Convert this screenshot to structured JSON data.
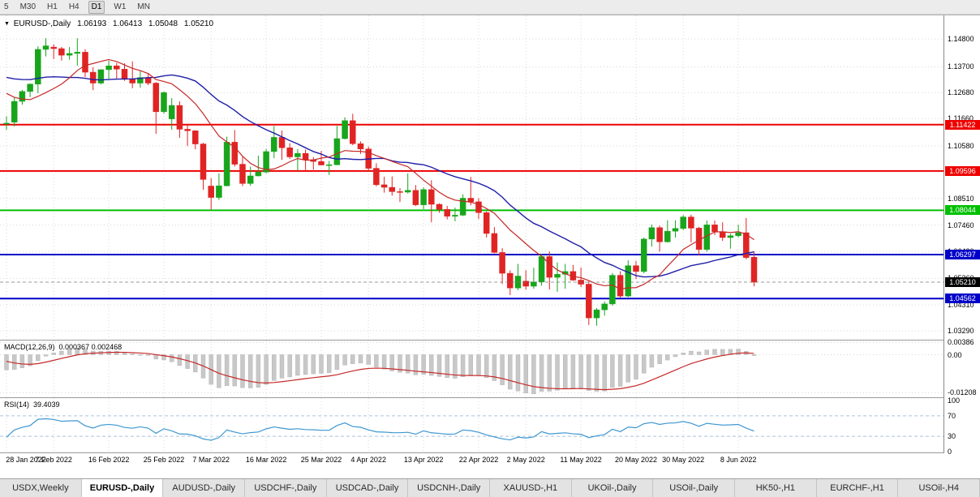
{
  "toolbar": {
    "timeframes": [
      "5",
      "M30",
      "H1",
      "H4",
      "D1",
      "W1",
      "MN"
    ],
    "active": "D1"
  },
  "colors": {
    "up": "#18a51c",
    "down": "#e02424",
    "ma_fast": "#c62828",
    "ma_slow": "#1f1fa8",
    "grid": "#d8d8d8",
    "macd_hist": "#c8c8c8",
    "macd_signal": "#c62828",
    "rsi_line": "#3e97d1",
    "rsi_level": "#a8c4e0"
  },
  "chart": {
    "title": "EURUSD-,Daily",
    "ohlc": {
      "open": "1.06193",
      "high": "1.06413",
      "low": "1.05048",
      "close": "1.05210"
    },
    "scale": {
      "top": 1.1573,
      "bottom": 1.0294
    },
    "axis_labels": [
      {
        "text": "1.14800",
        "price": 1.148
      },
      {
        "text": "1.13700",
        "price": 1.137
      },
      {
        "text": "1.12680",
        "price": 1.1268
      },
      {
        "text": "1.11660",
        "price": 1.1166
      },
      {
        "text": "1.10580",
        "price": 1.1058
      },
      {
        "text": "1.09560",
        "price": 1.0956
      },
      {
        "text": "1.08510",
        "price": 1.0851
      },
      {
        "text": "1.07460",
        "price": 1.0746
      },
      {
        "text": "1.06430",
        "price": 1.0643
      },
      {
        "text": "1.05360",
        "price": 1.0536
      },
      {
        "text": "1.04310",
        "price": 1.0431
      },
      {
        "text": "1.03290",
        "price": 1.0329
      }
    ],
    "hlines": [
      {
        "price": 1.11422,
        "text": "1.11422",
        "color": "#ee0000"
      },
      {
        "price": 1.09596,
        "text": "1.09596",
        "color": "#ee0000"
      },
      {
        "price": 1.08044,
        "text": "1.08044",
        "color": "#00c000"
      },
      {
        "price": 1.06297,
        "text": "1.06297",
        "color": "#0000c8"
      },
      {
        "price": 1.04562,
        "text": "1.04562",
        "color": "#0000c8"
      }
    ],
    "current_price": {
      "price": 1.0521,
      "text": "1.05210",
      "color": "#000000"
    },
    "dates": [
      {
        "label": "28 Jan 2022",
        "i": 0
      },
      {
        "label": "7 Feb 2022",
        "i": 6
      },
      {
        "label": "16 Feb 2022",
        "i": 13
      },
      {
        "label": "25 Feb 2022",
        "i": 20
      },
      {
        "label": "7 Mar 2022",
        "i": 26
      },
      {
        "label": "16 Mar 2022",
        "i": 33
      },
      {
        "label": "25 Mar 2022",
        "i": 40
      },
      {
        "label": "4 Apr 2022",
        "i": 46
      },
      {
        "label": "13 Apr 2022",
        "i": 53
      },
      {
        "label": "22 Apr 2022",
        "i": 60
      },
      {
        "label": "2 May 2022",
        "i": 66
      },
      {
        "label": "11 May 2022",
        "i": 73
      },
      {
        "label": "20 May 2022",
        "i": 80
      },
      {
        "label": "30 May 2022",
        "i": 86
      },
      {
        "label": "8 Jun 2022",
        "i": 93
      }
    ],
    "seed_closes": [
      1.1355,
      1.133,
      1.131,
      1.1325,
      1.136,
      1.1413,
      1.144,
      1.1455,
      1.1432,
      1.141,
      1.1415,
      1.139,
      1.134,
      1.1325,
      1.131,
      1.1303,
      1.1285,
      1.124,
      1.1175,
      1.1138
    ],
    "candles": [
      [
        1.1145,
        1.1175,
        1.1121,
        1.1148
      ],
      [
        1.1152,
        1.1248,
        1.1135,
        1.1234
      ],
      [
        1.1234,
        1.1279,
        1.1221,
        1.1273
      ],
      [
        1.1273,
        1.1305,
        1.1251,
        1.1302
      ],
      [
        1.1302,
        1.1451,
        1.1266,
        1.1439
      ],
      [
        1.1439,
        1.1483,
        1.1411,
        1.1453
      ],
      [
        1.1448,
        1.1459,
        1.1401,
        1.1442
      ],
      [
        1.1442,
        1.1449,
        1.1395,
        1.1416
      ],
      [
        1.1416,
        1.1448,
        1.1398,
        1.1423
      ],
      [
        1.1423,
        1.1483,
        1.1375,
        1.1428
      ],
      [
        1.1428,
        1.144,
        1.133,
        1.1349
      ],
      [
        1.1349,
        1.1369,
        1.1278,
        1.1306
      ],
      [
        1.1306,
        1.1359,
        1.1301,
        1.1359
      ],
      [
        1.1359,
        1.1395,
        1.1323,
        1.1374
      ],
      [
        1.1374,
        1.1386,
        1.1324,
        1.1361
      ],
      [
        1.1361,
        1.1384,
        1.1315,
        1.1321
      ],
      [
        1.1321,
        1.1392,
        1.1286,
        1.1306
      ],
      [
        1.1306,
        1.1357,
        1.1288,
        1.1328
      ],
      [
        1.1328,
        1.1343,
        1.1298,
        1.1306
      ],
      [
        1.1306,
        1.131,
        1.1106,
        1.1193
      ],
      [
        1.1193,
        1.1273,
        1.1185,
        1.1269
      ],
      [
        1.1165,
        1.1247,
        1.1122,
        1.1218
      ],
      [
        1.1218,
        1.1234,
        1.109,
        1.1124
      ],
      [
        1.1124,
        1.1143,
        1.1058,
        1.1118
      ],
      [
        1.1118,
        1.112,
        1.1045,
        1.1066
      ],
      [
        1.1066,
        1.107,
        1.0885,
        1.0926
      ],
      [
        1.09,
        1.0931,
        1.0806,
        1.0855
      ],
      [
        1.0855,
        1.095,
        1.0845,
        1.0901
      ],
      [
        1.0901,
        1.1095,
        1.0899,
        1.1073
      ],
      [
        1.1073,
        1.1121,
        1.0977,
        1.0986
      ],
      [
        1.0986,
        1.1015,
        1.09,
        1.091
      ],
      [
        1.091,
        1.0977,
        1.0901,
        1.094
      ],
      [
        1.094,
        1.102,
        1.0938,
        1.0955
      ],
      [
        1.0955,
        1.1046,
        1.095,
        1.1036
      ],
      [
        1.1036,
        1.1137,
        1.101,
        1.1092
      ],
      [
        1.1092,
        1.1119,
        1.1003,
        1.1051
      ],
      [
        1.1051,
        1.1069,
        1.1007,
        1.1015
      ],
      [
        1.1015,
        1.1046,
        1.0961,
        1.1029
      ],
      [
        1.1029,
        1.1044,
        1.0963,
        1.1004
      ],
      [
        1.1004,
        1.1014,
        1.0965,
        1.0997
      ],
      [
        1.0997,
        1.1039,
        1.0981,
        1.0983
      ],
      [
        1.0983,
        1.0999,
        1.0944,
        1.0984
      ],
      [
        1.0984,
        1.1137,
        1.0982,
        1.1087
      ],
      [
        1.1087,
        1.1171,
        1.1084,
        1.1158
      ],
      [
        1.1158,
        1.1185,
        1.1061,
        1.1067
      ],
      [
        1.1067,
        1.1076,
        1.1027,
        1.1046
      ],
      [
        1.1046,
        1.1056,
        1.096,
        1.097
      ],
      [
        1.097,
        1.099,
        1.0899,
        1.0905
      ],
      [
        1.0905,
        1.0937,
        1.0874,
        1.0895
      ],
      [
        1.0895,
        1.0938,
        1.0862,
        1.0878
      ],
      [
        1.0878,
        1.0892,
        1.0837,
        1.0876
      ],
      [
        1.0876,
        1.095,
        1.0871,
        1.0883
      ],
      [
        1.0883,
        1.0904,
        1.0821,
        1.0826
      ],
      [
        1.0826,
        1.0895,
        1.0809,
        1.0886
      ],
      [
        1.0886,
        1.0923,
        1.0757,
        1.0828
      ],
      [
        1.0828,
        1.0832,
        1.0795,
        1.0808
      ],
      [
        1.0808,
        1.0822,
        1.0769,
        1.0781
      ],
      [
        1.0781,
        1.0815,
        1.0761,
        1.0785
      ],
      [
        1.0785,
        1.0867,
        1.0782,
        1.0852
      ],
      [
        1.0852,
        1.0936,
        1.0824,
        1.0838
      ],
      [
        1.0838,
        1.0852,
        1.077,
        1.0795
      ],
      [
        1.0795,
        1.08,
        1.0697,
        1.0713
      ],
      [
        1.0713,
        1.0738,
        1.0635,
        1.0638
      ],
      [
        1.0638,
        1.0655,
        1.0514,
        1.0556
      ],
      [
        1.0556,
        1.0568,
        1.047,
        1.0498
      ],
      [
        1.0498,
        1.0593,
        1.049,
        1.0545
      ],
      [
        1.0525,
        1.0568,
        1.0491,
        1.0505
      ],
      [
        1.0505,
        1.0578,
        1.0495,
        1.0522
      ],
      [
        1.0522,
        1.0632,
        1.0507,
        1.0622
      ],
      [
        1.0622,
        1.0642,
        1.0492,
        1.054
      ],
      [
        1.054,
        1.0599,
        1.0483,
        1.0552
      ],
      [
        1.0552,
        1.0593,
        1.0495,
        1.0563
      ],
      [
        1.0563,
        1.0589,
        1.0526,
        1.0529
      ],
      [
        1.0529,
        1.0579,
        1.0502,
        1.0513
      ],
      [
        1.0513,
        1.0525,
        1.0352,
        1.038
      ],
      [
        1.038,
        1.0419,
        1.0349,
        1.0412
      ],
      [
        1.0412,
        1.0445,
        1.0389,
        1.0435
      ],
      [
        1.0435,
        1.0557,
        1.0428,
        1.0548
      ],
      [
        1.0548,
        1.0564,
        1.0459,
        1.0466
      ],
      [
        1.0466,
        1.0607,
        1.0462,
        1.0586
      ],
      [
        1.0586,
        1.0605,
        1.0533,
        1.0563
      ],
      [
        1.0563,
        1.0697,
        1.0556,
        1.0691
      ],
      [
        1.0691,
        1.0748,
        1.0661,
        1.0736
      ],
      [
        1.0736,
        1.0744,
        1.0641,
        1.068
      ],
      [
        1.068,
        1.0765,
        1.0677,
        1.0722
      ],
      [
        1.0722,
        1.0765,
        1.0697,
        1.0733
      ],
      [
        1.0733,
        1.0786,
        1.0726,
        1.0778
      ],
      [
        1.0778,
        1.0787,
        1.0678,
        1.0734
      ],
      [
        1.0734,
        1.0739,
        1.0627,
        1.065
      ],
      [
        1.065,
        1.0764,
        1.0641,
        1.0747
      ],
      [
        1.0747,
        1.0764,
        1.0707,
        1.072
      ],
      [
        1.072,
        1.0757,
        1.0684,
        1.0697
      ],
      [
        1.0697,
        1.0712,
        1.0653,
        1.0704
      ],
      [
        1.0704,
        1.0748,
        1.0697,
        1.0716
      ],
      [
        1.0716,
        1.0774,
        1.0611,
        1.0618
      ],
      [
        1.06193,
        1.06413,
        1.05048,
        1.0521
      ]
    ]
  },
  "macd": {
    "name": "MACD(12,26,9)",
    "values": "0.000367 0.002468",
    "scale": {
      "top": 0.0045,
      "bottom": -0.0135
    },
    "axis": [
      {
        "text": "0.00386",
        "v": 0.00386
      },
      {
        "text": "0.00",
        "v": 0
      },
      {
        "text": "-0.01208",
        "v": -0.01208
      }
    ]
  },
  "rsi": {
    "name": "RSI(14)",
    "value": "39.4039",
    "levels": [
      70,
      30
    ],
    "axis": [
      {
        "text": "100",
        "v": 100
      },
      {
        "text": "70",
        "v": 70
      },
      {
        "text": "30",
        "v": 30
      },
      {
        "text": "0",
        "v": 0
      }
    ]
  },
  "tabs": [
    {
      "label": "USDX,Weekly",
      "active": false
    },
    {
      "label": "EURUSD-,Daily",
      "active": true
    },
    {
      "label": "AUDUSD-,Daily",
      "active": false
    },
    {
      "label": "USDCHF-,Daily",
      "active": false
    },
    {
      "label": "USDCAD-,Daily",
      "active": false
    },
    {
      "label": "USDCNH-,Daily",
      "active": false
    },
    {
      "label": "XAUUSD-,H1",
      "active": false
    },
    {
      "label": "UKOil-,Daily",
      "active": false
    },
    {
      "label": "USOil-,Daily",
      "active": false
    },
    {
      "label": "HK50-,H1",
      "active": false
    },
    {
      "label": "EURCHF-,H1",
      "active": false
    },
    {
      "label": "USOil-,H4",
      "active": false
    }
  ]
}
